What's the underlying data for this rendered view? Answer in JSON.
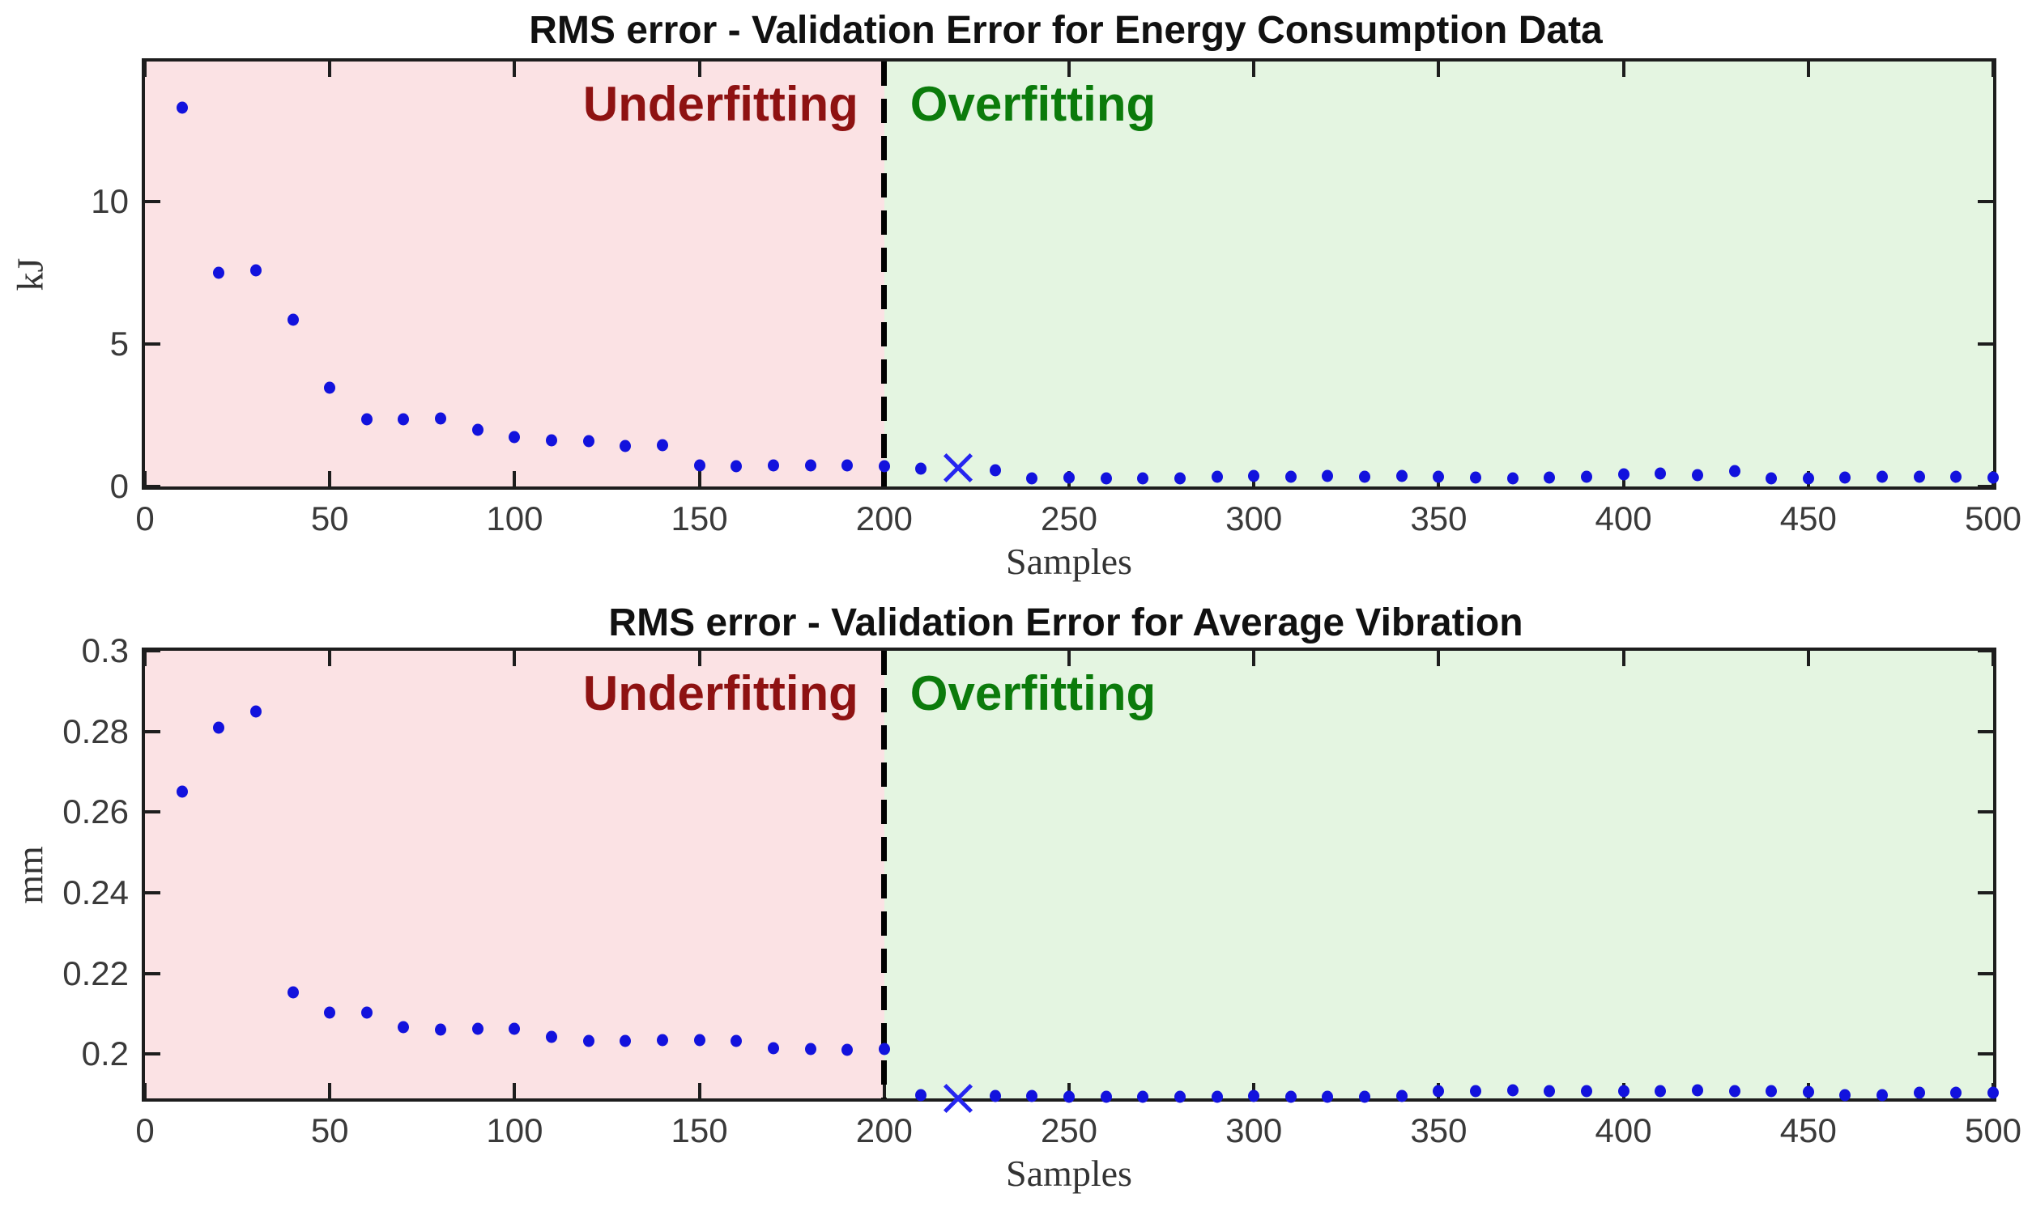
{
  "figure": {
    "background": "#ffffff",
    "dot_color": "#1212dd",
    "x_marker_color": "#2525f0",
    "axis_color": "#1d1d1d",
    "divider_color": "#000000"
  },
  "chart_data": [
    {
      "type": "scatter",
      "title": "RMS error - Validation Error for Energy Consumption Data",
      "xlabel": "Samples",
      "ylabel": "kJ",
      "xlim": [
        0,
        500
      ],
      "ylim": [
        0,
        14.92
      ],
      "grid": false,
      "x_ticks": [
        0,
        50,
        100,
        150,
        200,
        250,
        300,
        350,
        400,
        450,
        500
      ],
      "x_tick_labels": [
        "0",
        "50",
        "100",
        "150",
        "200",
        "250",
        "300",
        "350",
        "400",
        "450",
        "500"
      ],
      "y_ticks": [
        0,
        5,
        10
      ],
      "y_tick_labels": [
        "0",
        "5",
        "10"
      ],
      "divider_x": 200,
      "regions": [
        {
          "from": 0,
          "to": 200,
          "fill": "#fbe2e4",
          "label": "Underfitting",
          "label_color": "#8e1212"
        },
        {
          "from": 200,
          "to": 500,
          "fill": "#e4f5e1",
          "label": "Overfitting",
          "label_color": "#0b7b0b"
        }
      ],
      "x": [
        10,
        20,
        30,
        40,
        50,
        60,
        70,
        80,
        90,
        100,
        110,
        120,
        130,
        140,
        150,
        160,
        170,
        180,
        190,
        200,
        210,
        230,
        240,
        250,
        260,
        270,
        280,
        290,
        300,
        310,
        320,
        330,
        340,
        350,
        360,
        370,
        380,
        390,
        400,
        410,
        420,
        430,
        440,
        450,
        460,
        470,
        480,
        490,
        500
      ],
      "y": [
        13.3,
        7.5,
        7.6,
        5.85,
        3.48,
        2.35,
        2.36,
        2.38,
        2.0,
        1.72,
        1.62,
        1.59,
        1.43,
        1.45,
        0.74,
        0.7,
        0.73,
        0.74,
        0.73,
        0.7,
        0.63,
        0.57,
        0.28,
        0.3,
        0.27,
        0.29,
        0.27,
        0.33,
        0.36,
        0.33,
        0.36,
        0.34,
        0.36,
        0.33,
        0.3,
        0.29,
        0.31,
        0.34,
        0.42,
        0.46,
        0.4,
        0.55,
        0.27,
        0.28,
        0.31,
        0.33,
        0.33,
        0.34,
        0.32
      ],
      "best_marker": {
        "x": 220,
        "y": 0.66,
        "shape": "x"
      }
    },
    {
      "type": "scatter",
      "title": "RMS error - Validation Error for Average Vibration",
      "xlabel": "Samples",
      "ylabel": "mm",
      "xlim": [
        0,
        500
      ],
      "ylim": [
        0.189,
        0.3
      ],
      "grid": false,
      "x_ticks": [
        0,
        50,
        100,
        150,
        200,
        250,
        300,
        350,
        400,
        450,
        500
      ],
      "x_tick_labels": [
        "0",
        "50",
        "100",
        "150",
        "200",
        "250",
        "300",
        "350",
        "400",
        "450",
        "500"
      ],
      "y_ticks": [
        0.2,
        0.22,
        0.24,
        0.26,
        0.28,
        0.3
      ],
      "y_tick_labels": [
        "0.2",
        "0.22",
        "0.24",
        "0.26",
        "0.28",
        "0.3"
      ],
      "divider_x": 200,
      "regions": [
        {
          "from": 0,
          "to": 200,
          "fill": "#fbe2e4",
          "label": "Underfitting",
          "label_color": "#8e1212"
        },
        {
          "from": 200,
          "to": 500,
          "fill": "#e4f5e1",
          "label": "Overfitting",
          "label_color": "#0b7b0b"
        }
      ],
      "x": [
        10,
        20,
        30,
        40,
        50,
        60,
        70,
        80,
        90,
        100,
        110,
        120,
        130,
        140,
        150,
        160,
        170,
        180,
        190,
        200,
        210,
        230,
        240,
        250,
        260,
        270,
        280,
        290,
        300,
        310,
        320,
        330,
        340,
        350,
        360,
        370,
        380,
        390,
        400,
        410,
        420,
        430,
        440,
        450,
        460,
        470,
        480,
        490,
        500
      ],
      "y": [
        0.265,
        0.281,
        0.285,
        0.2152,
        0.2102,
        0.2102,
        0.2066,
        0.206,
        0.2062,
        0.2062,
        0.2042,
        0.2032,
        0.2032,
        0.2034,
        0.2034,
        0.2032,
        0.2014,
        0.2012,
        0.201,
        0.2012,
        0.1898,
        0.1896,
        0.1896,
        0.1895,
        0.1895,
        0.1895,
        0.1895,
        0.1895,
        0.1897,
        0.1895,
        0.1895,
        0.1894,
        0.1897,
        0.1908,
        0.1908,
        0.191,
        0.1908,
        0.1908,
        0.1909,
        0.1909,
        0.191,
        0.1909,
        0.1909,
        0.1906,
        0.1899,
        0.1899,
        0.1904,
        0.1904,
        0.1905
      ],
      "best_marker": {
        "x": 220,
        "y": 0.189,
        "shape": "x"
      }
    }
  ]
}
